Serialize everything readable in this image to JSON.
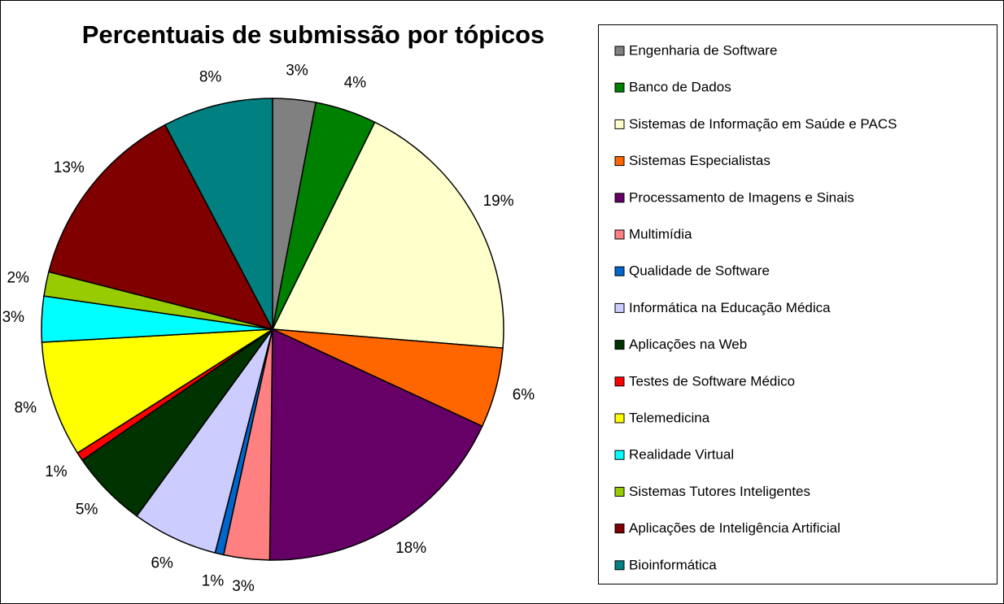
{
  "chart_data": {
    "type": "pie",
    "title": "Percentuais de submissão por tópicos",
    "categories": [
      "Engenharia de Software",
      "Banco de Dados",
      "Sistemas de Informação em Saúde e PACS",
      "Sistemas Especialistas",
      "Processamento de Imagens e Sinais",
      "Multimídia",
      "Qualidade de Software",
      "Informática na Educação Médica",
      "Aplicações na Web",
      "Testes de Software Médico",
      "Telemedicina",
      "Realidade Virtual",
      "Sistemas Tutores Inteligentes",
      "Aplicações de Inteligência Artificial",
      "Bioinformática"
    ],
    "values": [
      3.0,
      4.3,
      19.0,
      5.6,
      18.3,
      3.2,
      0.6,
      6.0,
      5.4,
      0.6,
      8.1,
      3.2,
      1.7,
      13.3,
      7.7
    ],
    "value_labels": [
      "3%",
      "4%",
      "19%",
      "6%",
      "18%",
      "3%",
      "1%",
      "6%",
      "5%",
      "1%",
      "8%",
      "3%",
      "2%",
      "13%",
      "8%"
    ],
    "colors": [
      "#808080",
      "#008000",
      "#FFFFCC",
      "#FF6600",
      "#660066",
      "#FF8080",
      "#0066CC",
      "#CCCCFF",
      "#003300",
      "#FF0000",
      "#FFFF00",
      "#00FFFF",
      "#99CC00",
      "#800000",
      "#008080"
    ],
    "legend": "right"
  }
}
